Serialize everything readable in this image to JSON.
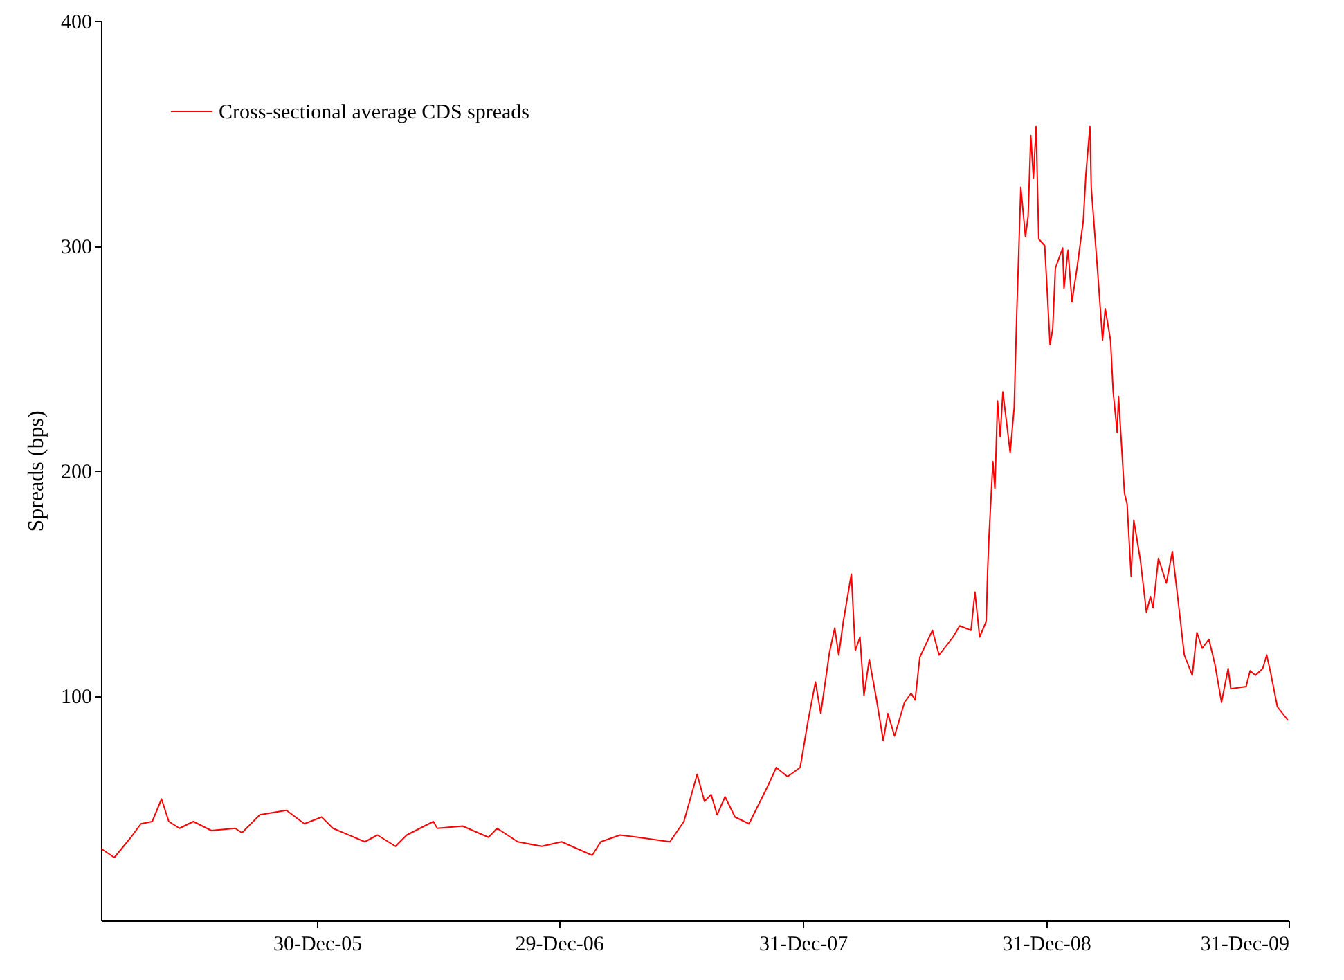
{
  "chart_data": {
    "type": "line",
    "ylabel": "Spreads (bps)",
    "x": [
      "2005-02-08",
      "2005-02-28",
      "2005-03-25",
      "2005-04-09",
      "2005-04-26",
      "2005-05-10",
      "2005-05-21",
      "2005-06-06",
      "2005-06-27",
      "2005-07-24",
      "2005-08-29",
      "2005-09-08",
      "2005-10-05",
      "2005-11-14",
      "2005-12-11",
      "2006-01-06",
      "2006-01-23",
      "2006-03-12",
      "2006-03-31",
      "2006-04-27",
      "2006-05-14",
      "2006-06-23",
      "2006-06-29",
      "2006-08-06",
      "2006-09-14",
      "2006-09-27",
      "2006-10-28",
      "2006-12-03",
      "2007-01-02",
      "2007-02-17",
      "2007-03-02",
      "2007-03-31",
      "2007-04-27",
      "2007-06-14",
      "2007-07-05",
      "2007-07-25",
      "2007-08-05",
      "2007-08-15",
      "2007-08-24",
      "2007-09-05",
      "2007-09-20",
      "2007-10-11",
      "2007-11-07",
      "2007-11-21",
      "2007-12-08",
      "2007-12-27",
      "2008-01-08",
      "2008-01-19",
      "2008-01-27",
      "2008-02-09",
      "2008-02-17",
      "2008-02-23",
      "2008-03-01",
      "2008-03-13",
      "2008-03-19",
      "2008-03-26",
      "2008-04-01",
      "2008-04-09",
      "2008-04-20",
      "2008-04-30",
      "2008-05-07",
      "2008-05-17",
      "2008-06-01",
      "2008-06-11",
      "2008-06-17",
      "2008-06-24",
      "2008-07-13",
      "2008-07-23",
      "2008-08-13",
      "2008-08-23",
      "2008-09-09",
      "2008-09-15",
      "2008-09-22",
      "2008-10-02",
      "2008-10-04",
      "2008-10-06",
      "2008-10-12",
      "2008-10-15",
      "2008-10-19",
      "2008-10-23",
      "2008-10-27",
      "2008-11-07",
      "2008-11-13",
      "2008-11-17",
      "2008-11-23",
      "2008-11-30",
      "2008-12-04",
      "2008-12-08",
      "2008-12-12",
      "2008-12-16",
      "2008-12-20",
      "2008-12-29",
      "2009-01-06",
      "2009-01-10",
      "2009-01-14",
      "2009-01-25",
      "2009-01-27",
      "2009-02-02",
      "2009-02-08",
      "2009-02-16",
      "2009-02-25",
      "2009-03-01",
      "2009-03-07",
      "2009-03-09",
      "2009-03-19",
      "2009-03-26",
      "2009-03-30",
      "2009-04-07",
      "2009-04-11",
      "2009-04-17",
      "2009-04-19",
      "2009-04-28",
      "2009-05-02",
      "2009-05-08",
      "2009-05-12",
      "2009-05-22",
      "2009-05-31",
      "2009-06-06",
      "2009-06-10",
      "2009-06-18",
      "2009-06-30",
      "2009-07-09",
      "2009-07-17",
      "2009-07-27",
      "2009-08-08",
      "2009-08-15",
      "2009-08-23",
      "2009-09-02",
      "2009-09-11",
      "2009-09-21",
      "2009-10-01",
      "2009-10-05",
      "2009-10-28",
      "2009-11-03",
      "2009-11-11",
      "2009-11-22",
      "2009-11-28",
      "2009-12-04",
      "2009-12-14",
      "2009-12-30"
    ],
    "series": [
      {
        "name": "Cross-sectional average CDS spreads",
        "color": "#ff0000",
        "values": [
          32,
          28,
          37,
          43,
          44,
          54,
          44,
          41,
          44,
          40,
          41,
          39,
          47,
          49,
          43,
          46,
          41,
          35,
          38,
          33,
          38,
          44,
          41,
          42,
          37,
          41,
          35,
          33,
          35,
          29,
          35,
          38,
          37,
          35,
          44,
          65,
          53,
          56,
          47,
          55,
          46,
          43,
          59,
          68,
          64,
          68,
          89,
          106,
          92,
          119,
          130,
          118,
          133,
          154,
          120,
          126,
          100,
          116,
          98,
          80,
          92,
          82,
          97,
          101,
          98,
          117,
          129,
          118,
          126,
          131,
          129,
          146,
          126,
          133,
          155,
          170,
          204,
          192,
          231,
          215,
          235,
          208,
          228,
          271,
          326,
          304,
          313,
          349,
          330,
          353,
          303,
          300,
          256,
          263,
          290,
          299,
          281,
          298,
          275,
          291,
          311,
          332,
          353,
          326,
          287,
          258,
          272,
          258,
          235,
          217,
          233,
          190,
          185,
          153,
          178,
          160,
          137,
          144,
          139,
          161,
          150,
          164,
          144,
          118,
          109,
          128,
          121,
          125,
          114,
          97,
          112,
          103,
          104,
          111,
          109,
          112,
          118,
          110,
          95,
          89
        ]
      }
    ],
    "xlim": [
      "2005-02-08",
      "2009-12-31"
    ],
    "xticks": [
      {
        "value": "2005-12-30",
        "label": "30-Dec-05"
      },
      {
        "value": "2006-12-29",
        "label": "29-Dec-06"
      },
      {
        "value": "2007-12-31",
        "label": "31-Dec-07"
      },
      {
        "value": "2008-12-31",
        "label": "31-Dec-08"
      },
      {
        "value": "2009-12-31",
        "label": "31-Dec-09"
      }
    ],
    "ylim": [
      0,
      400
    ],
    "yticks": [
      100,
      200,
      300,
      400
    ],
    "grid": false,
    "legend": "top left",
    "marker": "none",
    "line_style": "solid"
  }
}
